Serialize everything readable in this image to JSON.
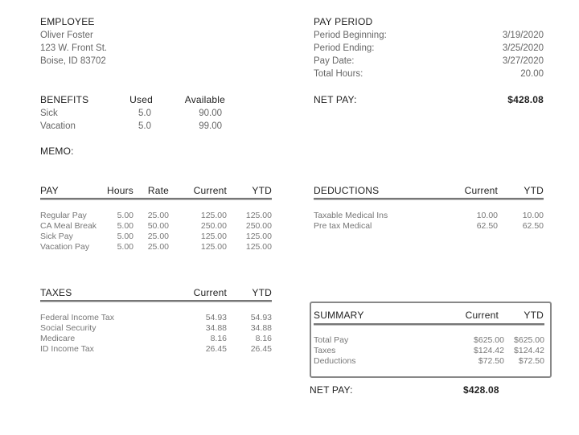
{
  "employee": {
    "heading": "EMPLOYEE",
    "name": "Oliver Foster",
    "address1": "123 W. Front St.",
    "address2": "Boise, ID 83702"
  },
  "pay_period": {
    "heading": "PAY PERIOD",
    "rows": [
      {
        "label": "Period Beginning:",
        "value": "3/19/2020"
      },
      {
        "label": "Period Ending:",
        "value": "3/25/2020"
      },
      {
        "label": "Pay Date:",
        "value": "3/27/2020"
      },
      {
        "label": "Total Hours:",
        "value": "20.00"
      }
    ]
  },
  "benefits": {
    "heading": "BENEFITS",
    "col_used": "Used",
    "col_available": "Available",
    "rows": [
      {
        "name": "Sick",
        "used": "5.0",
        "available": "90.00"
      },
      {
        "name": "Vacation",
        "used": "5.0",
        "available": "99.00"
      }
    ]
  },
  "net_pay_top": {
    "label": "NET PAY:",
    "value": "$428.08"
  },
  "memo": {
    "label": "MEMO:"
  },
  "pay": {
    "heading": "PAY",
    "cols": [
      "Hours",
      "Rate",
      "Current",
      "YTD"
    ],
    "rows": [
      [
        "Regular Pay",
        "5.00",
        "25.00",
        "125.00",
        "125.00"
      ],
      [
        "CA Meal Break",
        "5.00",
        "50.00",
        "250.00",
        "250.00"
      ],
      [
        "Sick Pay",
        "5.00",
        "25.00",
        "125.00",
        "125.00"
      ],
      [
        "Vacation Pay",
        "5.00",
        "25.00",
        "125.00",
        "125.00"
      ]
    ]
  },
  "deductions": {
    "heading": "DEDUCTIONS",
    "cols": [
      "Current",
      "YTD"
    ],
    "rows": [
      [
        "Taxable Medical Ins",
        "10.00",
        "10.00"
      ],
      [
        "Pre tax Medical",
        "62.50",
        "62.50"
      ]
    ]
  },
  "taxes": {
    "heading": "TAXES",
    "cols": [
      "Current",
      "YTD"
    ],
    "rows": [
      [
        "Federal Income Tax",
        "54.93",
        "54.93"
      ],
      [
        "Social Security",
        "34.88",
        "34.88"
      ],
      [
        "Medicare",
        "8.16",
        "8.16"
      ],
      [
        "ID Income Tax",
        "26.45",
        "26.45"
      ]
    ]
  },
  "summary": {
    "heading": "SUMMARY",
    "cols": [
      "Current",
      "YTD"
    ],
    "rows": [
      [
        "Total Pay",
        "$625.00",
        "$625.00"
      ],
      [
        "Taxes",
        "$124.42",
        "$124.42"
      ],
      [
        "Deductions",
        "$72.50",
        "$72.50"
      ]
    ]
  },
  "net_pay_bottom": {
    "label": "NET PAY:",
    "value": "$428.08"
  }
}
